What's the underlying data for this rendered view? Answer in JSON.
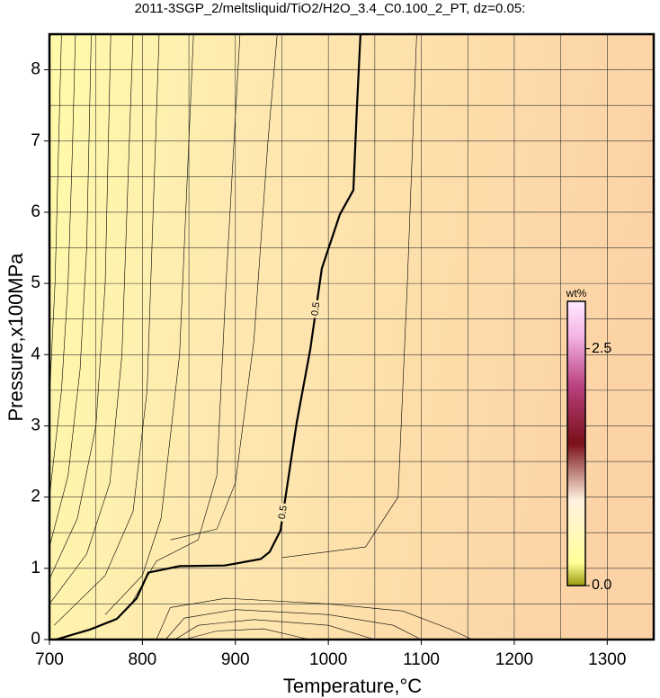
{
  "chart_data": {
    "type": "contour",
    "title": "2011-3SGP_2/meltsliquid/TiO2/H2O_3.4_C0.100_2_PT, dz=0.05:",
    "x_label": "Temperature,°C",
    "y_label": "Pressure,x100MPa",
    "xlim": [
      700,
      1350
    ],
    "ylim": [
      0,
      8.5
    ],
    "xticks": [
      700,
      800,
      900,
      1000,
      1100,
      1200,
      1300
    ],
    "yticks": [
      0,
      1,
      2,
      3,
      4,
      5,
      6,
      7,
      8
    ],
    "xgridlines": [
      700,
      750,
      800,
      850,
      900,
      950,
      1000,
      1050,
      1100,
      1150,
      1200,
      1250,
      1300,
      1350
    ],
    "ygridlines": [
      0,
      0.5,
      1,
      1.5,
      2,
      2.5,
      3,
      3.5,
      4,
      4.5,
      5,
      5.5,
      6,
      6.5,
      7,
      7.5,
      8,
      8.5
    ],
    "contours": [
      {
        "labels": [
          "0.5",
          "0.5"
        ],
        "bold": true,
        "x": [
          707,
          743.5,
          772.5,
          793.8,
          806.4,
          840.2,
          888.6,
          927.3,
          936.9,
          948.5,
          954.4,
          966,
          980.5,
          993,
          1012.4,
          1026.9,
          1030.8,
          1034.6
        ],
        "y": [
          0,
          0.14,
          0.29,
          0.58,
          0.94,
          1.03,
          1.04,
          1.13,
          1.23,
          1.53,
          2.04,
          3.05,
          4.07,
          5.21,
          5.97,
          6.31,
          7.49,
          8.5
        ]
      },
      {
        "x": [
          700,
          706,
          710,
          713
        ],
        "y": [
          3.4,
          5,
          7,
          8.5
        ]
      },
      {
        "x": [
          700,
          713,
          720,
          725,
          728
        ],
        "y": [
          2.0,
          3.5,
          5,
          7,
          8.5
        ]
      },
      {
        "x": [
          700,
          720,
          733,
          740,
          745
        ],
        "y": [
          1.3,
          2.3,
          3.8,
          5.5,
          8.5
        ]
      },
      {
        "x": [
          700,
          730,
          750,
          760,
          766
        ],
        "y": [
          0.85,
          1.7,
          3,
          5,
          8.5
        ]
      },
      {
        "x": [
          700,
          740,
          765,
          778,
          790
        ],
        "y": [
          0.5,
          1.2,
          2.2,
          4,
          8.5
        ]
      },
      {
        "x": [
          705,
          760,
          790,
          805,
          818
        ],
        "y": [
          0.2,
          0.9,
          1.8,
          3.5,
          8.5
        ]
      },
      {
        "x": [
          760,
          800,
          820,
          840,
          855
        ],
        "y": [
          0.35,
          0.9,
          1.7,
          4,
          8.5
        ]
      },
      {
        "x": [
          790,
          815,
          860,
          880,
          890,
          905
        ],
        "y": [
          0.55,
          1.1,
          1.4,
          2.3,
          5,
          8.5
        ]
      },
      {
        "x": [
          830,
          880,
          900,
          920,
          935,
          945
        ],
        "y": [
          1.4,
          1.55,
          2.2,
          4.2,
          7,
          8.5
        ]
      },
      {
        "x": [
          950,
          1040,
          1075,
          1085,
          1095
        ],
        "y": [
          1.15,
          1.3,
          2,
          5,
          8.5
        ]
      },
      {
        "x": [
          815,
          830,
          890,
          1000,
          1080,
          1130,
          1155
        ],
        "y": [
          0,
          0.45,
          0.58,
          0.5,
          0.4,
          0.15,
          0
        ]
      },
      {
        "x": [
          825,
          845,
          900,
          1000,
          1070,
          1100
        ],
        "y": [
          0,
          0.3,
          0.42,
          0.35,
          0.2,
          0
        ]
      },
      {
        "x": [
          835,
          860,
          920,
          1000,
          1050
        ],
        "y": [
          0,
          0.2,
          0.28,
          0.2,
          0
        ]
      },
      {
        "x": [
          845,
          880,
          930,
          980
        ],
        "y": [
          0,
          0.12,
          0.15,
          0
        ]
      }
    ],
    "colorbar": {
      "label": "wt%",
      "lim": [
        0,
        3.0
      ],
      "ticks": [
        {
          "value": 0,
          "label": "0.0"
        },
        2.5
      ]
    }
  }
}
